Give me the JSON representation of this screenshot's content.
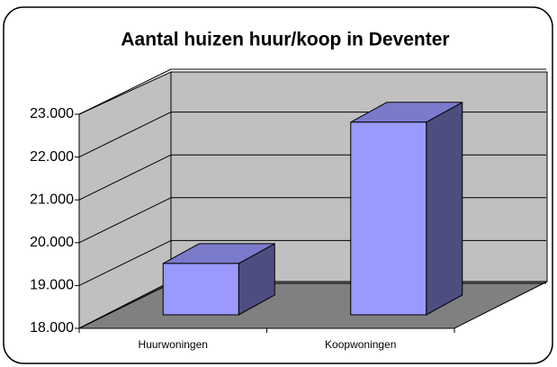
{
  "chart_data": {
    "type": "bar3d",
    "title": "Aantal huizen huur/koop in Deventer",
    "categories": [
      "Huurwoningen",
      "Koopwoningen"
    ],
    "values": [
      19200,
      22500
    ],
    "color": "#9999ff",
    "ylim": [
      18000,
      23000
    ],
    "yticks": [
      {
        "value": 18000,
        "label": "18.000"
      },
      {
        "value": 19000,
        "label": "19.000"
      },
      {
        "value": 20000,
        "label": "20.000"
      },
      {
        "value": 21000,
        "label": "21.000"
      },
      {
        "value": 22000,
        "label": "22.000"
      },
      {
        "value": 23000,
        "label": "23.000"
      }
    ],
    "grid": true
  }
}
